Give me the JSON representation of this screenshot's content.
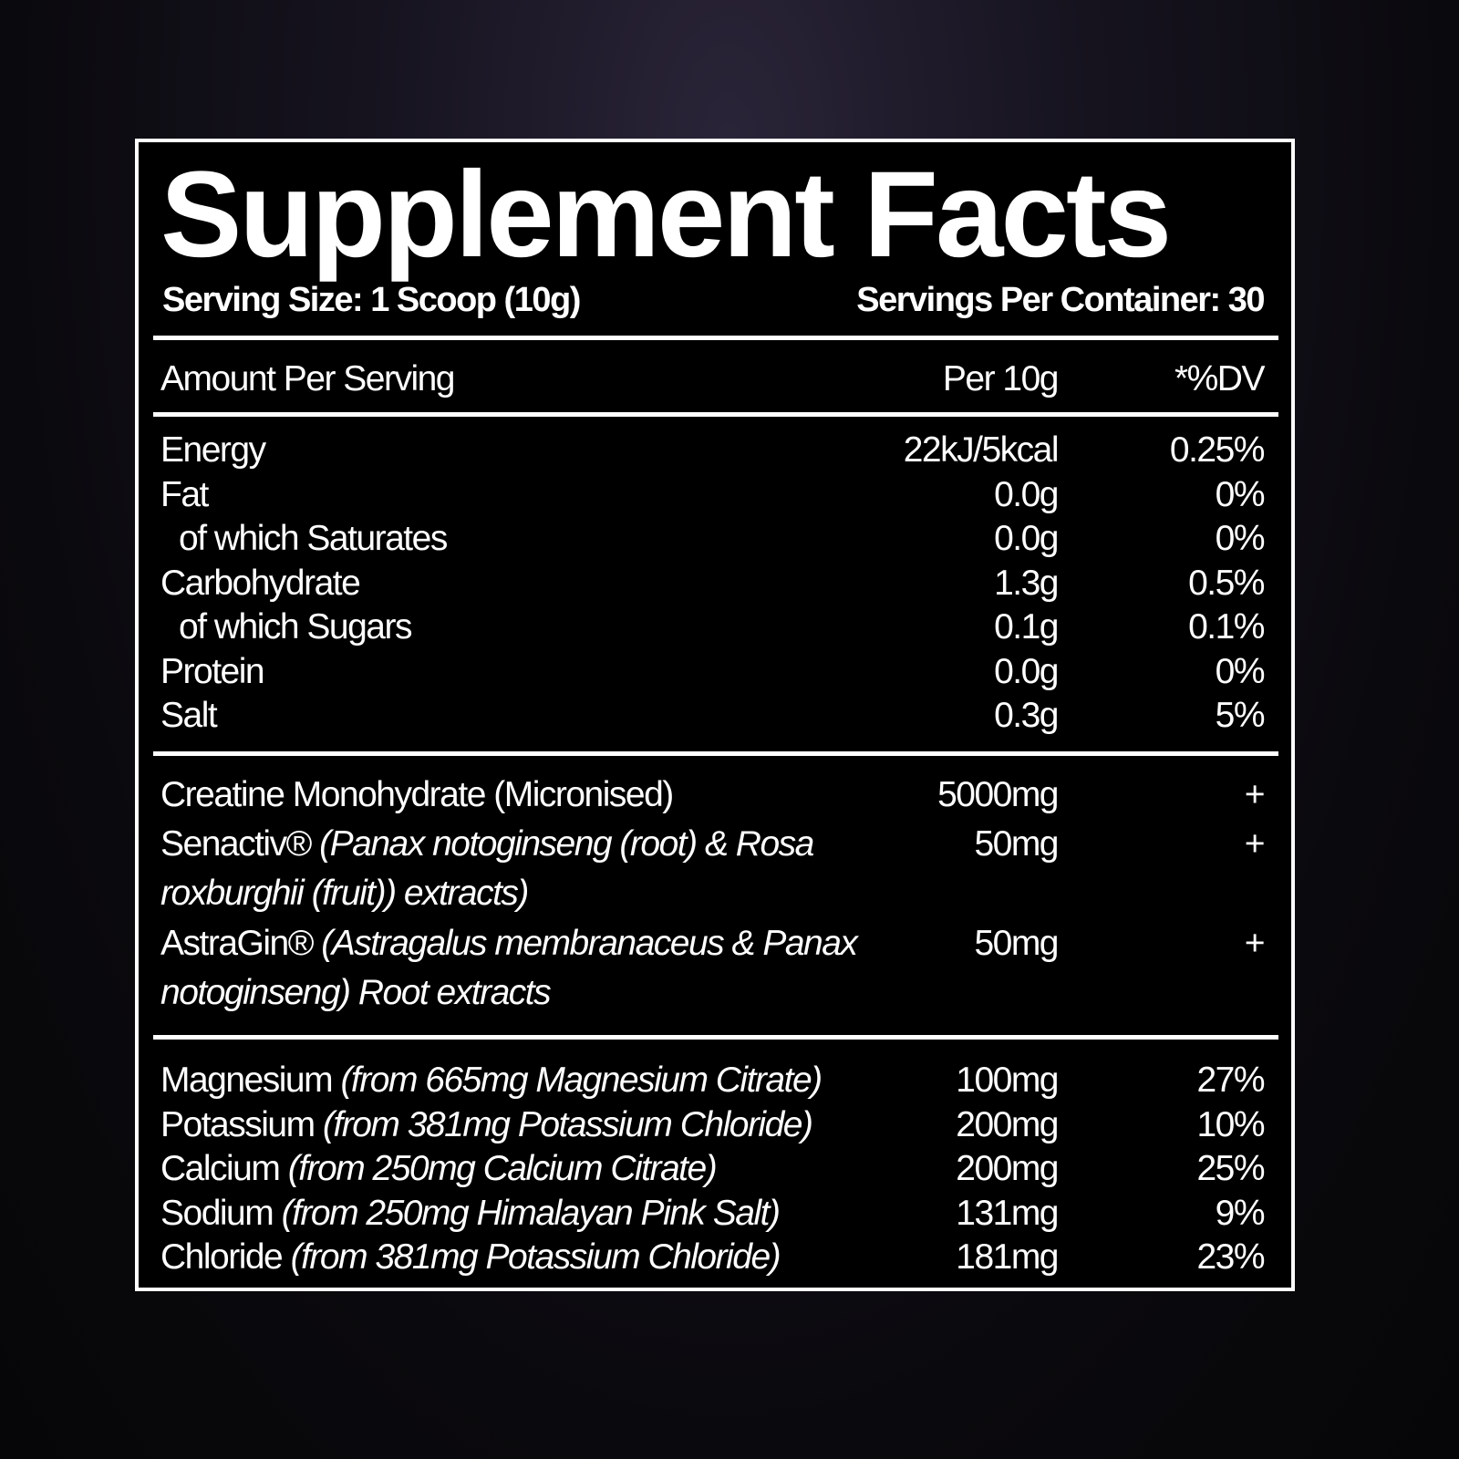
{
  "title": "Supplement Facts",
  "serving_size": "Serving Size: 1 Scoop (10g)",
  "servings_per_container": "Servings Per Container: 30",
  "header": {
    "amount_per_serving": "Amount Per Serving",
    "per": "Per 10g",
    "dv": "*%DV"
  },
  "nutrition": [
    {
      "name": "Energy",
      "amount": "22kJ/5kcal",
      "dv": "0.25%",
      "indent": false
    },
    {
      "name": "Fat",
      "amount": "0.0g",
      "dv": "0%",
      "indent": false
    },
    {
      "name": "of which Saturates",
      "amount": "0.0g",
      "dv": "0%",
      "indent": true
    },
    {
      "name": "Carbohydrate",
      "amount": "1.3g",
      "dv": "0.5%",
      "indent": false
    },
    {
      "name": "of which Sugars",
      "amount": "0.1g",
      "dv": "0.1%",
      "indent": true
    },
    {
      "name": "Protein",
      "amount": "0.0g",
      "dv": "0%",
      "indent": false
    },
    {
      "name": "Salt",
      "amount": "0.3g",
      "dv": "5%",
      "indent": false
    }
  ],
  "actives": [
    {
      "name": "Creatine Monohydrate (Micronised)",
      "detail": "",
      "detail2": "",
      "amount": "5000mg",
      "dv": "+"
    },
    {
      "name": "Senactiv®",
      "detail": "(Panax notoginseng (root) & Rosa",
      "detail2": "roxburghii (fruit)) extracts)",
      "amount": "50mg",
      "dv": "+"
    },
    {
      "name": "AstraGin®",
      "detail": "(Astragalus membranaceus & Panax",
      "detail2": "notoginseng) Root extracts",
      "amount": "50mg",
      "dv": "+"
    }
  ],
  "minerals": [
    {
      "name": "Magnesium",
      "detail": "(from 665mg Magnesium Citrate)",
      "amount": "100mg",
      "dv": "27%"
    },
    {
      "name": "Potassium",
      "detail": "(from 381mg Potassium Chloride)",
      "amount": "200mg",
      "dv": "10%"
    },
    {
      "name": "Calcium",
      "detail": "(from 250mg Calcium Citrate)",
      "amount": "200mg",
      "dv": "25%"
    },
    {
      "name": "Sodium",
      "detail": "(from 250mg Himalayan Pink Salt)",
      "amount": "131mg",
      "dv": "9%"
    },
    {
      "name": "Chloride",
      "detail": "(from 381mg Potassium Chloride)",
      "amount": "181mg",
      "dv": "23%"
    }
  ]
}
